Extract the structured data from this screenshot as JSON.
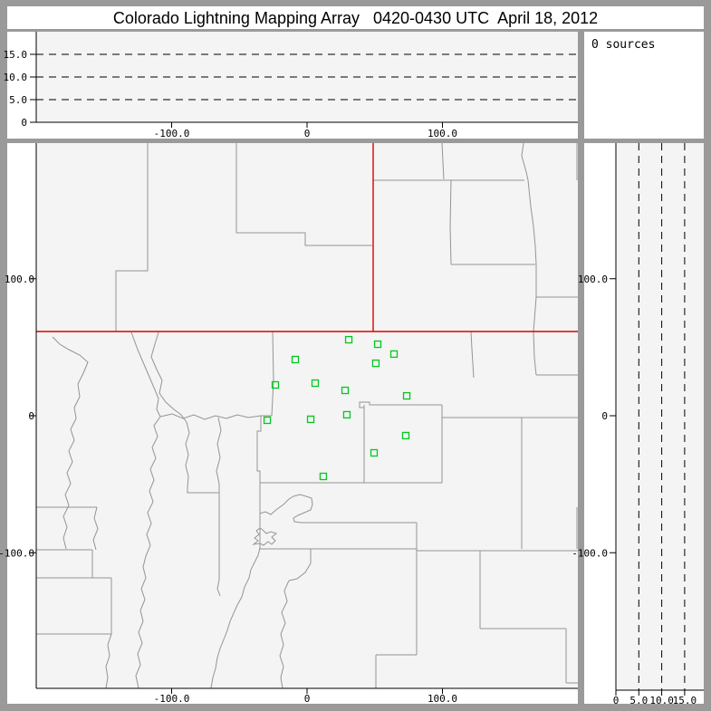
{
  "window": {
    "title": "Colorado Lightning Mapping Array   0420-0430 UTC  April 18, 2012"
  },
  "sources_panel": {
    "label": "0 sources",
    "source_count": 0
  },
  "colors": {
    "frame": "#9a9a9a",
    "panel_bg": "#ffffff",
    "plot_bg": "#f4f4f4",
    "axis": "#000000",
    "county": "#949494",
    "state_border": "#dd0000",
    "station": "#00c81e",
    "text": "#000000"
  },
  "chart_data": {
    "type": "scatter",
    "title": "Colorado Lightning Mapping Array   0420-0430 UTC  April 18, 2012",
    "source_count_text": "0 sources",
    "panels": [
      {
        "id": "altitude_vs_eastwest",
        "position": "top-left",
        "x_ticks": [
          {
            "v": -100,
            "label": "-100.0"
          },
          {
            "v": 0,
            "label": "0"
          },
          {
            "v": 100,
            "label": "100.0"
          }
        ],
        "xlim_km": [
          -200,
          200
        ],
        "y_ticks": [
          {
            "v": 0,
            "label": "0"
          },
          {
            "v": 5,
            "label": "5.0"
          },
          {
            "v": 10,
            "label": "10.0"
          },
          {
            "v": 15,
            "label": "15.0"
          }
        ],
        "ylim_km": [
          0,
          20
        ],
        "dashed_altitude_lines_km": [
          5,
          10,
          15
        ],
        "points": []
      },
      {
        "id": "source_count_box",
        "position": "top-right",
        "text": "0 sources"
      },
      {
        "id": "plan_view_map",
        "position": "bottom-left",
        "x_ticks": [
          {
            "v": -100,
            "label": "-100.0"
          },
          {
            "v": 0,
            "label": "0"
          },
          {
            "v": 100,
            "label": "100.0"
          }
        ],
        "xlim_km": [
          -200,
          200
        ],
        "y_ticks": [
          {
            "v": 100,
            "label": "100.0"
          },
          {
            "v": 0,
            "label": "0"
          },
          {
            "v": -100,
            "label": "-100.0"
          }
        ],
        "ylim_km": [
          -199,
          199
        ],
        "grid": false,
        "stations_km": [
          [
            30.8,
            55.5
          ],
          [
            52.2,
            52.2
          ],
          [
            64.2,
            45.0
          ],
          [
            50.8,
            38.3
          ],
          [
            -8.7,
            41.0
          ],
          [
            -23.4,
            22.5
          ],
          [
            6.0,
            23.8
          ],
          [
            28.1,
            18.5
          ],
          [
            73.6,
            14.5
          ],
          [
            -29.4,
            -3.3
          ],
          [
            2.7,
            -2.6
          ],
          [
            29.4,
            0.7
          ],
          [
            72.9,
            -14.5
          ],
          [
            49.5,
            -27.1
          ],
          [
            12.0,
            -44.3
          ]
        ],
        "lightning_sources": []
      },
      {
        "id": "altitude_vs_northsouth",
        "position": "bottom-right",
        "x_ticks": [
          {
            "v": 0,
            "label": "0"
          },
          {
            "v": 5,
            "label": "5.0"
          },
          {
            "v": 10,
            "label": "10.0"
          },
          {
            "v": 15,
            "label": "15.0"
          }
        ],
        "xlim_km": [
          0,
          19
        ],
        "y_ticks": [
          {
            "v": 100,
            "label": "100.0"
          },
          {
            "v": 0,
            "label": "0"
          },
          {
            "v": -100,
            "label": "-100.0"
          }
        ],
        "ylim_km": [
          -199,
          199
        ],
        "dashed_altitude_lines_km": [
          5,
          10,
          15
        ],
        "points": []
      }
    ]
  },
  "map_geometry": {
    "units": "screen_px",
    "state_borders_red": [
      [
        [
          40,
          366
        ],
        [
          638,
          366
        ]
      ],
      [
        [
          412,
          158
        ],
        [
          412,
          366
        ]
      ]
    ],
    "county_lines": [
      [
        [
          163,
          158
        ],
        [
          163,
          299
        ],
        [
          128,
          299
        ],
        [
          128,
          366
        ]
      ],
      [
        [
          261,
          158
        ],
        [
          261,
          257
        ],
        [
          337,
          257
        ],
        [
          337,
          271
        ],
        [
          411,
          271
        ]
      ],
      [
        [
          488,
          158
        ],
        [
          490,
          198
        ]
      ],
      [
        [
          412,
          199
        ],
        [
          579,
          199
        ]
      ],
      [
        [
          498,
          199
        ],
        [
          497,
          250
        ],
        [
          498,
          292
        ]
      ],
      [
        [
          498,
          292
        ],
        [
          591,
          292
        ]
      ],
      [
        [
          578,
          158
        ],
        [
          576,
          172
        ],
        [
          581,
          190
        ],
        [
          583,
          199
        ],
        [
          586,
          228
        ],
        [
          589,
          250
        ],
        [
          591,
          272
        ],
        [
          592,
          292
        ],
        [
          592,
          328
        ]
      ],
      [
        [
          592,
          328
        ],
        [
          638,
          328
        ]
      ],
      [
        [
          592,
          328
        ],
        [
          589,
          366
        ]
      ],
      [
        [
          637,
          158
        ],
        [
          637,
          199
        ]
      ],
      [
        [
          301,
          366
        ],
        [
          302,
          420
        ],
        [
          300,
          459
        ],
        [
          288,
          459
        ],
        [
          288,
          476
        ],
        [
          284,
          476
        ],
        [
          284,
          520
        ],
        [
          287,
          520
        ],
        [
          287,
          566
        ]
      ],
      [
        [
          287,
          533
        ],
        [
          402,
          533
        ]
      ],
      [
        [
          402,
          447
        ],
        [
          402,
          533
        ]
      ],
      [
        [
          402,
          450
        ],
        [
          397,
          450
        ],
        [
          397,
          444
        ],
        [
          408,
          444
        ],
        [
          408,
          447
        ],
        [
          488,
          447
        ]
      ],
      [
        [
          488,
          447
        ],
        [
          488,
          533
        ]
      ],
      [
        [
          402,
          533
        ],
        [
          488,
          533
        ]
      ],
      [
        [
          488,
          461
        ],
        [
          638,
          461
        ]
      ],
      [
        [
          576,
          461
        ],
        [
          576,
          606
        ]
      ],
      [
        [
          592,
          414
        ],
        [
          638,
          414
        ]
      ],
      [
        [
          589,
          366
        ],
        [
          590,
          395
        ],
        [
          592,
          414
        ]
      ],
      [
        [
          520,
          366
        ],
        [
          521,
          385
        ],
        [
          523,
          417
        ]
      ],
      [
        [
          637,
          560
        ],
        [
          637,
          606
        ]
      ],
      [
        [
          287,
          567
        ],
        [
          293,
          565
        ],
        [
          299,
          568
        ],
        [
          306,
          562
        ],
        [
          313,
          557
        ],
        [
          319,
          551
        ],
        [
          324,
          548
        ],
        [
          331,
          546
        ],
        [
          338,
          548
        ],
        [
          344,
          550
        ],
        [
          345,
          557
        ],
        [
          343,
          563
        ],
        [
          336,
          566
        ],
        [
          329,
          569
        ],
        [
          324,
          572
        ],
        [
          325,
          576
        ],
        [
          333,
          577
        ],
        [
          460,
          577
        ]
      ],
      [
        [
          460,
          577
        ],
        [
          460,
          723
        ]
      ],
      [
        [
          287,
          583
        ],
        [
          283,
          586
        ],
        [
          286,
          590
        ],
        [
          281,
          594
        ],
        [
          285,
          597
        ],
        [
          280,
          601
        ],
        [
          287,
          600
        ],
        [
          291,
          602
        ],
        [
          296,
          598
        ],
        [
          300,
          601
        ],
        [
          304,
          597
        ],
        [
          300,
          593
        ],
        [
          305,
          589
        ],
        [
          299,
          587
        ],
        [
          294,
          589
        ],
        [
          290,
          585
        ],
        [
          287,
          583
        ]
      ],
      [
        [
          287,
          566
        ],
        [
          287,
          605
        ]
      ],
      [
        [
          287,
          605
        ],
        [
          285,
          613
        ],
        [
          281,
          621
        ],
        [
          277,
          629
        ],
        [
          275,
          638
        ],
        [
          270,
          648
        ],
        [
          267,
          659
        ],
        [
          262,
          668
        ],
        [
          258,
          677
        ],
        [
          254,
          686
        ],
        [
          251,
          696
        ],
        [
          247,
          706
        ],
        [
          243,
          716
        ],
        [
          240,
          726
        ],
        [
          238,
          738
        ],
        [
          235,
          748
        ],
        [
          233,
          760
        ]
      ],
      [
        [
          343,
          606
        ],
        [
          343,
          622
        ],
        [
          337,
          632
        ],
        [
          328,
          639
        ],
        [
          319,
          641
        ]
      ],
      [
        [
          319,
          641
        ],
        [
          314,
          652
        ],
        [
          317,
          664
        ],
        [
          311,
          676
        ],
        [
          315,
          688
        ],
        [
          310,
          700
        ],
        [
          313,
          712
        ],
        [
          309,
          724
        ],
        [
          313,
          736
        ],
        [
          310,
          748
        ],
        [
          312,
          760
        ]
      ],
      [
        [
          40,
          607
        ],
        [
          102,
          607
        ]
      ],
      [
        [
          102,
          607
        ],
        [
          102,
          638
        ]
      ],
      [
        [
          40,
          638
        ],
        [
          123,
          638
        ]
      ],
      [
        [
          123,
          638
        ],
        [
          123,
          700
        ]
      ],
      [
        [
          40,
          700
        ],
        [
          123,
          700
        ]
      ],
      [
        [
          123,
          700
        ],
        [
          119,
          712
        ],
        [
          121,
          724
        ],
        [
          117,
          736
        ],
        [
          119,
          748
        ],
        [
          117,
          760
        ]
      ],
      [
        [
          286,
          606
        ],
        [
          460,
          606
        ]
      ],
      [
        [
          460,
          608
        ],
        [
          638,
          608
        ]
      ],
      [
        [
          415,
          723
        ],
        [
          460,
          723
        ]
      ],
      [
        [
          415,
          723
        ],
        [
          415,
          760
        ]
      ],
      [
        [
          530,
          608
        ],
        [
          530,
          694
        ]
      ],
      [
        [
          530,
          694
        ],
        [
          625,
          694
        ]
      ],
      [
        [
          625,
          694
        ],
        [
          625,
          754
        ]
      ],
      [
        [
          625,
          754
        ],
        [
          638,
          754
        ]
      ],
      [
        [
          58,
          372
        ],
        [
          66,
          380
        ],
        [
          76,
          386
        ],
        [
          88,
          392
        ],
        [
          97,
          400
        ],
        [
          92,
          412
        ],
        [
          86,
          424
        ],
        [
          88,
          438
        ],
        [
          82,
          450
        ],
        [
          84,
          462
        ],
        [
          78,
          474
        ],
        [
          82,
          486
        ],
        [
          76,
          498
        ],
        [
          80,
          510
        ],
        [
          74,
          522
        ],
        [
          78,
          534
        ],
        [
          72,
          546
        ],
        [
          76,
          558
        ],
        [
          70,
          570
        ],
        [
          74,
          582
        ],
        [
          70,
          594
        ],
        [
          73,
          606
        ]
      ],
      [
        [
          145,
          367
        ],
        [
          152,
          386
        ],
        [
          158,
          400
        ],
        [
          164,
          414
        ],
        [
          170,
          428
        ],
        [
          175,
          440
        ],
        [
          173,
          452
        ],
        [
          177,
          460
        ]
      ],
      [
        [
          177,
          460
        ],
        [
          190,
          457
        ],
        [
          202,
          462
        ],
        [
          214,
          458
        ],
        [
          226,
          463
        ],
        [
          238,
          459
        ],
        [
          250,
          462
        ],
        [
          262,
          458
        ],
        [
          274,
          461
        ],
        [
          288,
          459
        ]
      ],
      [
        [
          177,
          460
        ],
        [
          170,
          470
        ],
        [
          174,
          482
        ],
        [
          168,
          494
        ],
        [
          172,
          506
        ],
        [
          166,
          518
        ],
        [
          170,
          530
        ],
        [
          165,
          542
        ],
        [
          169,
          554
        ],
        [
          163,
          566
        ],
        [
          167,
          578
        ],
        [
          162,
          590
        ],
        [
          166,
          602
        ],
        [
          161,
          614
        ],
        [
          158,
          626
        ],
        [
          161,
          638
        ],
        [
          156,
          650
        ],
        [
          160,
          662
        ],
        [
          155,
          674
        ],
        [
          158,
          686
        ],
        [
          153,
          698
        ],
        [
          157,
          710
        ],
        [
          152,
          722
        ],
        [
          155,
          734
        ],
        [
          150,
          746
        ],
        [
          153,
          760
        ]
      ],
      [
        [
          175,
          367
        ],
        [
          171,
          380
        ],
        [
          167,
          394
        ],
        [
          173,
          408
        ],
        [
          179,
          420
        ],
        [
          176,
          434
        ],
        [
          183,
          444
        ],
        [
          192,
          452
        ],
        [
          200,
          458
        ],
        [
          206,
          466
        ]
      ],
      [
        [
          206,
          466
        ],
        [
          209,
          478
        ],
        [
          205,
          490
        ],
        [
          208,
          502
        ],
        [
          205,
          514
        ],
        [
          208,
          526
        ],
        [
          207,
          538
        ],
        [
          207,
          544
        ],
        [
          218,
          544
        ],
        [
          230,
          544
        ],
        [
          242,
          544
        ]
      ],
      [
        [
          241,
          461
        ],
        [
          244,
          475
        ],
        [
          240,
          490
        ],
        [
          243,
          505
        ],
        [
          239,
          520
        ],
        [
          242,
          534
        ],
        [
          242,
          544
        ]
      ],
      [
        [
          242,
          544
        ],
        [
          242,
          640
        ],
        [
          240,
          650
        ],
        [
          243,
          658
        ]
      ],
      [
        [
          40,
          560
        ],
        [
          107,
          560
        ]
      ],
      [
        [
          107,
          560
        ],
        [
          104,
          572
        ],
        [
          108,
          584
        ],
        [
          103,
          596
        ],
        [
          106,
          607
        ]
      ]
    ]
  }
}
